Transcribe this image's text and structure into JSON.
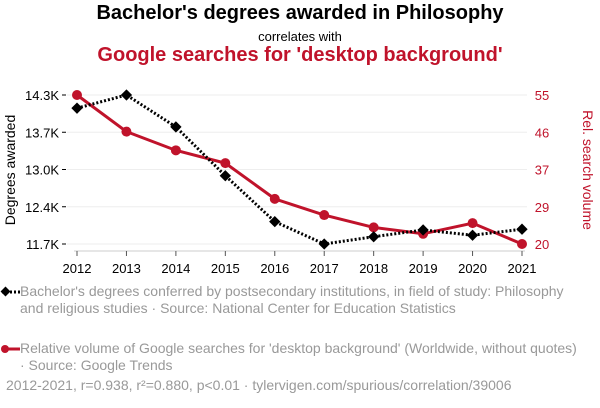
{
  "chart_data": {
    "type": "line",
    "title": "Bachelor's degrees awarded in Philosophy",
    "subtitle": "correlates with",
    "title2": "Google searches for 'desktop background'",
    "x": [
      2012,
      2013,
      2014,
      2015,
      2016,
      2017,
      2018,
      2019,
      2020,
      2021
    ],
    "xticks": [
      "2012",
      "2013",
      "2014",
      "2015",
      "2016",
      "2017",
      "2018",
      "2019",
      "2020",
      "2021"
    ],
    "ylabel_left": "Degrees awarded",
    "ylabel_right": "Rel. search volume",
    "ylim_left": [
      11700,
      14300
    ],
    "ylim_right": [
      20,
      55
    ],
    "yticks_left": [
      "14.3K",
      "13.7K",
      "13.0K",
      "12.4K",
      "11.7K"
    ],
    "yticks_right": [
      "55",
      "46",
      "37",
      "29",
      "20"
    ],
    "grid": true,
    "series": [
      {
        "name": "Bachelor's degrees conferred by postsecondary institutions, in field of study: Philosophy and religious studies · Source: National Center for Education Statistics",
        "axis": "left",
        "color": "#000000",
        "values": [
          14070,
          14300,
          13743,
          12891,
          12090,
          11700,
          11827,
          11945,
          11853,
          11958
        ]
      },
      {
        "name": "Relative volume of Google searches for 'desktop background' (Worldwide, without quotes) · Source: Google Trends",
        "axis": "right",
        "color": "#c0132b",
        "values": [
          55,
          46.4,
          42,
          39,
          30.6,
          26.8,
          23.9,
          22.4,
          24.9,
          20
        ]
      }
    ],
    "footer": "2012-2021, r=0.938, r²=0.880, p<0.01 · tylervigen.com/spurious/correlation/39006"
  }
}
